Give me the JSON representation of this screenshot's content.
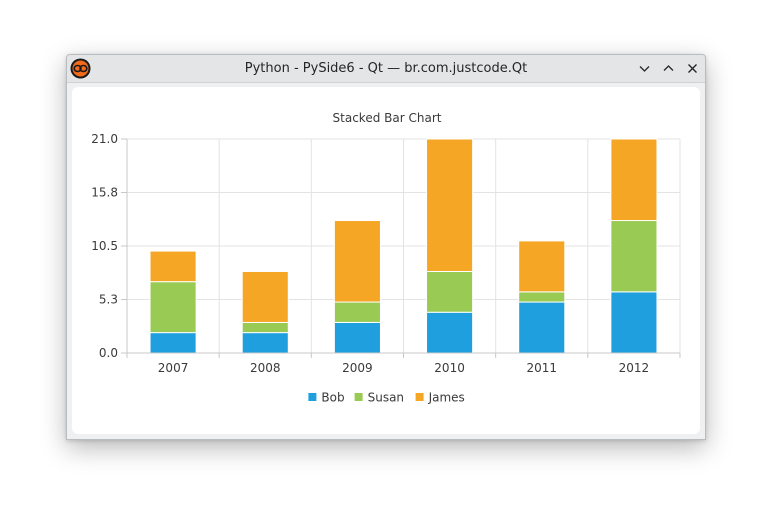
{
  "window": {
    "title": "Python - PySide6 - Qt — br.com.justcode.Qt",
    "controls": [
      "minimize-icon",
      "maximize-icon",
      "close-icon"
    ]
  },
  "colors": {
    "bob": "#209fdf",
    "susan": "#99ca53",
    "james": "#f6a625",
    "grid": "#e3e3e3",
    "axis": "#c8c8c8",
    "text": "#3a3a3a"
  },
  "chart_data": {
    "type": "bar",
    "stacked": true,
    "title": "Stacked Bar Chart",
    "categories": [
      "2007",
      "2008",
      "2009",
      "2010",
      "2011",
      "2012"
    ],
    "series": [
      {
        "name": "Bob",
        "values": [
          2,
          2,
          3,
          4,
          5,
          6
        ]
      },
      {
        "name": "Susan",
        "values": [
          5,
          1,
          2,
          4,
          1,
          7
        ]
      },
      {
        "name": "James",
        "values": [
          3,
          5,
          8,
          13,
          5,
          8
        ]
      }
    ],
    "yticks": [
      "0.0",
      "5.3",
      "10.5",
      "15.8",
      "21.0"
    ],
    "ylim": [
      0,
      21
    ],
    "grid": true,
    "legend_position": "bottom"
  }
}
